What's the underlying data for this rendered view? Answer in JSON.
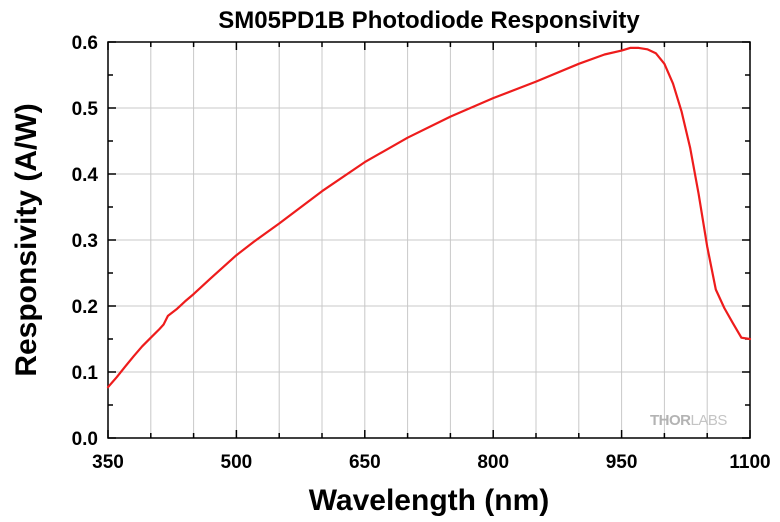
{
  "chart_data": {
    "type": "line",
    "title": "SM05PD1B Photodiode Responsivity",
    "xlabel": "Wavelength (nm)",
    "ylabel": "Responsivity (A/W)",
    "xlim": [
      350,
      1100
    ],
    "ylim": [
      0.0,
      0.6
    ],
    "x_ticks": [
      "350",
      "500",
      "650",
      "800",
      "950",
      "1100"
    ],
    "y_ticks": [
      "0.0",
      "0.1",
      "0.2",
      "0.3",
      "0.4",
      "0.5",
      "0.6"
    ],
    "grid": true,
    "line_color": "#ee1c1c",
    "watermark": {
      "part1": "THOR",
      "part2": "LABS"
    },
    "series": [
      {
        "x": [
          350,
          360,
          370,
          380,
          390,
          400,
          410,
          415,
          420,
          430,
          440,
          450,
          470,
          500,
          520,
          550,
          600,
          650,
          700,
          750,
          800,
          850,
          900,
          930,
          950,
          960,
          970,
          980,
          990,
          1000,
          1010,
          1020,
          1030,
          1040,
          1050,
          1060,
          1070,
          1080,
          1090,
          1100
        ],
        "y": [
          0.077,
          0.092,
          0.108,
          0.124,
          0.139,
          0.152,
          0.165,
          0.172,
          0.185,
          0.195,
          0.207,
          0.218,
          0.242,
          0.277,
          0.297,
          0.325,
          0.374,
          0.418,
          0.455,
          0.487,
          0.515,
          0.54,
          0.567,
          0.581,
          0.587,
          0.591,
          0.591,
          0.589,
          0.583,
          0.567,
          0.537,
          0.495,
          0.44,
          0.37,
          0.29,
          0.225,
          0.197,
          0.174,
          0.152,
          0.15
        ]
      }
    ]
  }
}
